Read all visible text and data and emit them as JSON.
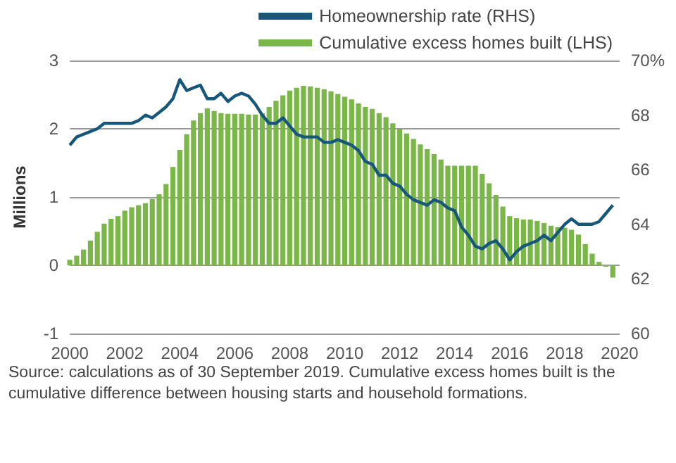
{
  "chart_data": {
    "type": "bar",
    "ylabel": "Millions",
    "x": [
      2000,
      2000.25,
      2000.5,
      2000.75,
      2001,
      2001.25,
      2001.5,
      2001.75,
      2002,
      2002.25,
      2002.5,
      2002.75,
      2003,
      2003.25,
      2003.5,
      2003.75,
      2004,
      2004.25,
      2004.5,
      2004.75,
      2005,
      2005.25,
      2005.5,
      2005.75,
      2006,
      2006.25,
      2006.5,
      2006.75,
      2007,
      2007.25,
      2007.5,
      2007.75,
      2008,
      2008.25,
      2008.5,
      2008.75,
      2009,
      2009.25,
      2009.5,
      2009.75,
      2010,
      2010.25,
      2010.5,
      2010.75,
      2011,
      2011.25,
      2011.5,
      2011.75,
      2012,
      2012.25,
      2012.5,
      2012.75,
      2013,
      2013.25,
      2013.5,
      2013.75,
      2014,
      2014.25,
      2014.5,
      2014.75,
      2015,
      2015.25,
      2015.5,
      2015.75,
      2016,
      2016.25,
      2016.5,
      2016.75,
      2017,
      2017.25,
      2017.5,
      2017.75,
      2018,
      2018.25,
      2018.5,
      2018.75,
      2019,
      2019.25,
      2019.5,
      2019.75
    ],
    "series": [
      {
        "name": "Homeownership rate (RHS)",
        "type": "line",
        "axis": "y2",
        "color": "#17587a",
        "values": [
          66.9,
          67.2,
          67.3,
          67.4,
          67.5,
          67.7,
          67.7,
          67.7,
          67.7,
          67.7,
          67.8,
          68.0,
          67.9,
          68.1,
          68.3,
          68.6,
          69.3,
          68.9,
          69.0,
          69.1,
          68.6,
          68.6,
          68.8,
          68.5,
          68.7,
          68.8,
          68.7,
          68.4,
          68.0,
          67.7,
          67.7,
          67.9,
          67.6,
          67.3,
          67.2,
          67.2,
          67.2,
          67.0,
          67.0,
          67.1,
          67.0,
          66.9,
          66.7,
          66.3,
          66.2,
          65.8,
          65.8,
          65.5,
          65.4,
          65.1,
          64.9,
          64.8,
          64.7,
          64.9,
          64.8,
          64.6,
          64.5,
          63.9,
          63.6,
          63.2,
          63.1,
          63.3,
          63.4,
          63.1,
          62.7,
          63.0,
          63.2,
          63.3,
          63.4,
          63.6,
          63.4,
          63.7,
          64.0,
          64.2,
          64.0,
          64.0,
          64.0,
          64.1,
          64.4,
          64.7
        ]
      },
      {
        "name": "Cumulative excess homes built (LHS)",
        "color": "#7ab648",
        "values": [
          0.08,
          0.14,
          0.23,
          0.36,
          0.49,
          0.61,
          0.68,
          0.72,
          0.8,
          0.85,
          0.88,
          0.91,
          0.97,
          1.04,
          1.19,
          1.44,
          1.69,
          1.92,
          2.12,
          2.23,
          2.3,
          2.26,
          2.23,
          2.22,
          2.22,
          2.22,
          2.21,
          2.21,
          2.23,
          2.32,
          2.41,
          2.49,
          2.56,
          2.6,
          2.63,
          2.62,
          2.6,
          2.58,
          2.55,
          2.51,
          2.47,
          2.43,
          2.37,
          2.32,
          2.29,
          2.23,
          2.17,
          2.08,
          1.99,
          1.93,
          1.85,
          1.77,
          1.7,
          1.63,
          1.55,
          1.46,
          1.46,
          1.46,
          1.46,
          1.46,
          1.34,
          1.2,
          1.03,
          0.86,
          0.72,
          0.69,
          0.67,
          0.67,
          0.65,
          0.62,
          0.58,
          0.56,
          0.55,
          0.52,
          0.45,
          0.31,
          0.17,
          0.05,
          -0.02,
          -0.18
        ]
      }
    ],
    "xlim": [
      2000,
      2020
    ],
    "xticks": [
      2000,
      2002,
      2004,
      2006,
      2008,
      2010,
      2012,
      2014,
      2016,
      2018,
      2020
    ],
    "ylim": [
      -1,
      3
    ],
    "yticks": [
      -1,
      0,
      1,
      2,
      3
    ],
    "y2lim": [
      60,
      70
    ],
    "y2ticks": [
      60,
      62,
      64,
      66,
      68,
      {
        "value": 70,
        "label": "70%"
      }
    ],
    "grid": "y",
    "legend": "top right",
    "annotations": [
      "Source: calculations as of 30 September 2019. Cumulative excess homes built is the cumulative difference between housing starts and household formations."
    ]
  }
}
